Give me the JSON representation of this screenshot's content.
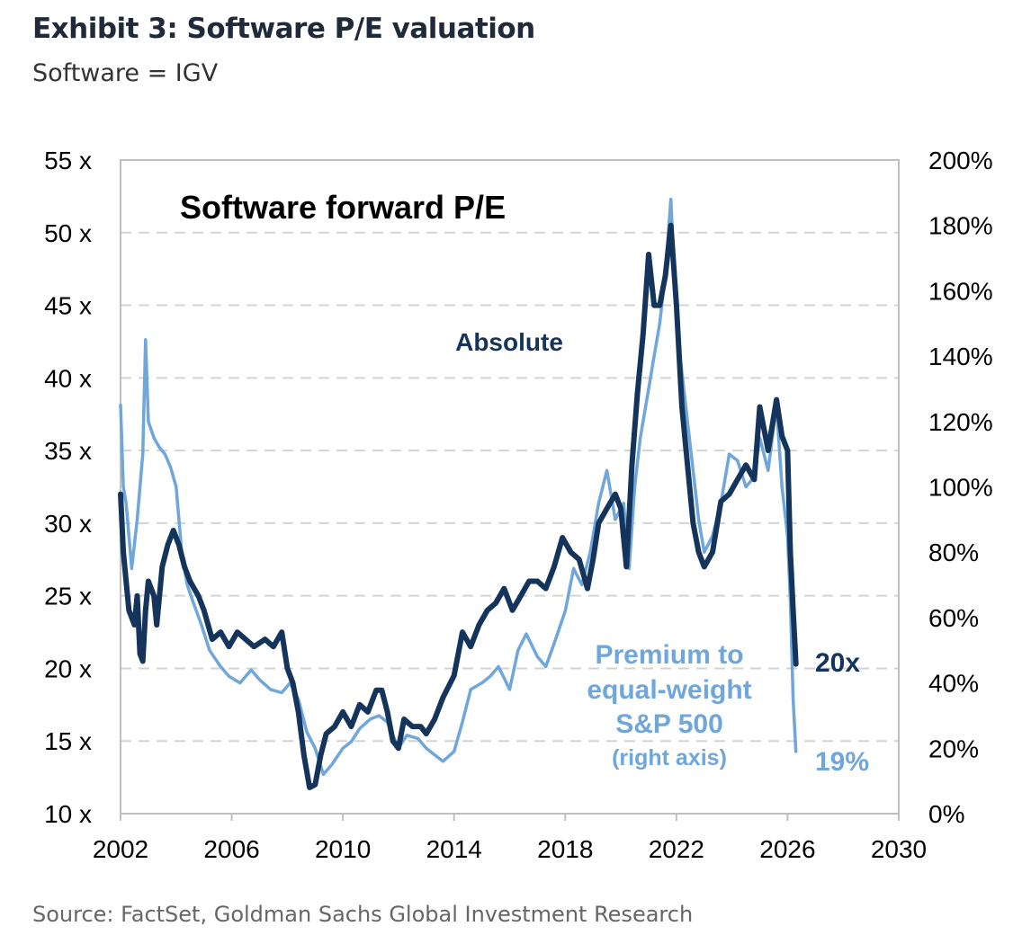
{
  "header": {
    "title": "Exhibit 3: Software P/E valuation",
    "subtitle": "Software = IGV"
  },
  "footer": {
    "source": "Source: FactSet, Goldman Sachs Global Investment Research"
  },
  "chart_data": {
    "type": "line",
    "title": "Software forward P/E",
    "x_ticks": [
      "2002",
      "2006",
      "2010",
      "2014",
      "2018",
      "2022",
      "2026",
      "2030"
    ],
    "x_range": [
      2002,
      2030
    ],
    "y_left": {
      "range": [
        10,
        55
      ],
      "ticks": [
        "10 x",
        "15 x",
        "20 x",
        "25 x",
        "30 x",
        "35 x",
        "40 x",
        "45 x",
        "50 x",
        "55 x"
      ]
    },
    "y_right": {
      "range": [
        0,
        200
      ],
      "ticks": [
        "0%",
        "20%",
        "40%",
        "60%",
        "80%",
        "100%",
        "120%",
        "140%",
        "160%",
        "180%",
        "200%"
      ]
    },
    "grid": "horizontal-dashed",
    "colors": {
      "absolute": "#14345c",
      "premium": "#6fa6db",
      "grid": "#d3d3d3",
      "axis": "#bfbfbf"
    },
    "series": [
      {
        "name": "Absolute",
        "axis": "left",
        "points": [
          [
            2002.0,
            32
          ],
          [
            2002.1,
            28
          ],
          [
            2002.3,
            24
          ],
          [
            2002.5,
            23
          ],
          [
            2002.6,
            25
          ],
          [
            2002.7,
            21
          ],
          [
            2002.8,
            20.5
          ],
          [
            2002.9,
            24
          ],
          [
            2003.0,
            26
          ],
          [
            2003.2,
            25
          ],
          [
            2003.3,
            23
          ],
          [
            2003.5,
            27
          ],
          [
            2003.7,
            28.5
          ],
          [
            2003.9,
            29.5
          ],
          [
            2004.1,
            28.5
          ],
          [
            2004.3,
            27
          ],
          [
            2004.5,
            26
          ],
          [
            2004.8,
            25
          ],
          [
            2005.0,
            24
          ],
          [
            2005.3,
            22
          ],
          [
            2005.6,
            22.5
          ],
          [
            2005.9,
            21.5
          ],
          [
            2006.2,
            22.5
          ],
          [
            2006.5,
            22
          ],
          [
            2006.8,
            21.5
          ],
          [
            2007.2,
            22
          ],
          [
            2007.5,
            21.5
          ],
          [
            2007.8,
            22.5
          ],
          [
            2008.0,
            20
          ],
          [
            2008.2,
            19
          ],
          [
            2008.4,
            17
          ],
          [
            2008.6,
            14
          ],
          [
            2008.8,
            11.8
          ],
          [
            2009.0,
            12
          ],
          [
            2009.2,
            14
          ],
          [
            2009.4,
            15.5
          ],
          [
            2009.7,
            16
          ],
          [
            2010.0,
            17
          ],
          [
            2010.3,
            16
          ],
          [
            2010.6,
            17.5
          ],
          [
            2010.9,
            17
          ],
          [
            2011.2,
            18.5
          ],
          [
            2011.4,
            18.5
          ],
          [
            2011.6,
            17
          ],
          [
            2011.8,
            15
          ],
          [
            2012.0,
            14.5
          ],
          [
            2012.2,
            16.5
          ],
          [
            2012.5,
            16
          ],
          [
            2012.8,
            16
          ],
          [
            2013.0,
            15.5
          ],
          [
            2013.3,
            16.5
          ],
          [
            2013.6,
            18
          ],
          [
            2014.0,
            19.5
          ],
          [
            2014.3,
            22.5
          ],
          [
            2014.6,
            21.5
          ],
          [
            2014.9,
            23
          ],
          [
            2015.2,
            24
          ],
          [
            2015.5,
            24.5
          ],
          [
            2015.8,
            25.5
          ],
          [
            2016.1,
            24
          ],
          [
            2016.4,
            25
          ],
          [
            2016.7,
            26
          ],
          [
            2017.0,
            26
          ],
          [
            2017.3,
            25.5
          ],
          [
            2017.6,
            27
          ],
          [
            2017.9,
            29
          ],
          [
            2018.2,
            28
          ],
          [
            2018.5,
            27.5
          ],
          [
            2018.8,
            25.5
          ],
          [
            2019.0,
            27.5
          ],
          [
            2019.2,
            30
          ],
          [
            2019.5,
            31
          ],
          [
            2019.8,
            32
          ],
          [
            2020.0,
            31
          ],
          [
            2020.2,
            27
          ],
          [
            2020.4,
            34
          ],
          [
            2020.6,
            39
          ],
          [
            2020.8,
            43
          ],
          [
            2021.0,
            48.5
          ],
          [
            2021.2,
            45
          ],
          [
            2021.4,
            45
          ],
          [
            2021.6,
            47
          ],
          [
            2021.8,
            50.5
          ],
          [
            2022.0,
            45
          ],
          [
            2022.2,
            38
          ],
          [
            2022.4,
            34
          ],
          [
            2022.6,
            30
          ],
          [
            2022.8,
            28
          ],
          [
            2023.0,
            27
          ],
          [
            2023.3,
            28
          ],
          [
            2023.6,
            31.5
          ],
          [
            2023.9,
            32
          ],
          [
            2024.2,
            33
          ],
          [
            2024.5,
            34
          ],
          [
            2024.8,
            33
          ],
          [
            2025.0,
            38
          ],
          [
            2025.3,
            35
          ],
          [
            2025.6,
            38.5
          ],
          [
            2025.8,
            36
          ],
          [
            2026.0,
            35
          ],
          [
            2026.1,
            28
          ],
          [
            2026.2,
            24
          ],
          [
            2026.3,
            20.3
          ]
        ]
      },
      {
        "name": "Premium to equal-weight S&P 500",
        "axis": "right",
        "points": [
          [
            2002.0,
            125
          ],
          [
            2002.1,
            100
          ],
          [
            2002.2,
            95
          ],
          [
            2002.4,
            75
          ],
          [
            2002.6,
            90
          ],
          [
            2002.8,
            110
          ],
          [
            2002.9,
            145
          ],
          [
            2003.0,
            120
          ],
          [
            2003.2,
            115
          ],
          [
            2003.4,
            112
          ],
          [
            2003.6,
            110
          ],
          [
            2003.8,
            106
          ],
          [
            2004.0,
            100
          ],
          [
            2004.2,
            80
          ],
          [
            2004.4,
            70
          ],
          [
            2004.6,
            65
          ],
          [
            2004.9,
            58
          ],
          [
            2005.2,
            50
          ],
          [
            2005.6,
            45
          ],
          [
            2005.9,
            42
          ],
          [
            2006.3,
            40
          ],
          [
            2006.7,
            44
          ],
          [
            2007.0,
            41
          ],
          [
            2007.4,
            38
          ],
          [
            2007.8,
            37
          ],
          [
            2008.1,
            40
          ],
          [
            2008.4,
            35
          ],
          [
            2008.7,
            25
          ],
          [
            2009.0,
            20
          ],
          [
            2009.3,
            12
          ],
          [
            2009.6,
            15
          ],
          [
            2010.0,
            20
          ],
          [
            2010.3,
            22
          ],
          [
            2010.6,
            26
          ],
          [
            2011.0,
            29
          ],
          [
            2011.3,
            30
          ],
          [
            2011.6,
            28
          ],
          [
            2012.0,
            20
          ],
          [
            2012.3,
            24
          ],
          [
            2012.7,
            23
          ],
          [
            2013.0,
            20
          ],
          [
            2013.3,
            18
          ],
          [
            2013.6,
            16
          ],
          [
            2014.0,
            19
          ],
          [
            2014.3,
            28
          ],
          [
            2014.6,
            38
          ],
          [
            2015.0,
            40
          ],
          [
            2015.3,
            42
          ],
          [
            2015.6,
            45
          ],
          [
            2016.0,
            38
          ],
          [
            2016.3,
            50
          ],
          [
            2016.6,
            55
          ],
          [
            2017.0,
            48
          ],
          [
            2017.3,
            45
          ],
          [
            2017.6,
            52
          ],
          [
            2018.0,
            62
          ],
          [
            2018.3,
            75
          ],
          [
            2018.6,
            70
          ],
          [
            2018.9,
            80
          ],
          [
            2019.2,
            95
          ],
          [
            2019.5,
            105
          ],
          [
            2019.8,
            90
          ],
          [
            2020.1,
            95
          ],
          [
            2020.3,
            75
          ],
          [
            2020.5,
            100
          ],
          [
            2020.7,
            115
          ],
          [
            2021.0,
            130
          ],
          [
            2021.2,
            140
          ],
          [
            2021.4,
            150
          ],
          [
            2021.6,
            165
          ],
          [
            2021.8,
            188
          ],
          [
            2022.0,
            150
          ],
          [
            2022.2,
            135
          ],
          [
            2022.4,
            120
          ],
          [
            2022.6,
            105
          ],
          [
            2022.8,
            90
          ],
          [
            2023.0,
            80
          ],
          [
            2023.3,
            85
          ],
          [
            2023.6,
            95
          ],
          [
            2023.9,
            110
          ],
          [
            2024.2,
            108
          ],
          [
            2024.5,
            100
          ],
          [
            2024.8,
            103
          ],
          [
            2025.0,
            115
          ],
          [
            2025.3,
            105
          ],
          [
            2025.6,
            125
          ],
          [
            2025.8,
            100
          ],
          [
            2026.0,
            85
          ],
          [
            2026.1,
            65
          ],
          [
            2026.2,
            35
          ],
          [
            2026.3,
            19
          ]
        ]
      }
    ],
    "annotations": [
      {
        "id": "absolute_label",
        "text": "Absolute"
      },
      {
        "id": "premium_line1",
        "text": "Premium to"
      },
      {
        "id": "premium_line2",
        "text": "equal-weight"
      },
      {
        "id": "premium_line3",
        "text": "S&P 500"
      },
      {
        "id": "premium_line4",
        "text": "(right axis)"
      },
      {
        "id": "end_absolute",
        "text": "20x"
      },
      {
        "id": "end_premium",
        "text": "19%"
      }
    ]
  }
}
